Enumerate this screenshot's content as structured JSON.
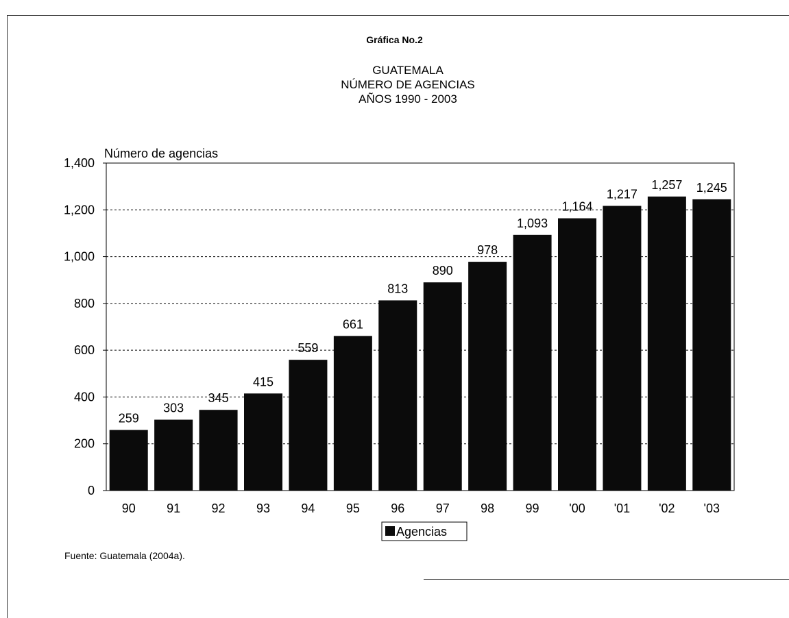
{
  "figure_label": "Gráfica No.2",
  "title_lines": [
    "GUATEMALA",
    "NÚMERO DE AGENCIAS",
    "AÑOS 1990 - 2003"
  ],
  "source": "Fuente: Guatemala (2004a).",
  "colors": {
    "bar": "#0b0b0b",
    "grid": "#000000",
    "background": "#ffffff"
  },
  "chart_data": {
    "type": "bar",
    "title": "GUATEMALA NÚMERO DE AGENCIAS AÑOS 1990 - 2003",
    "ylabel": "Número de agencias",
    "xlabel": "",
    "categories": [
      "90",
      "91",
      "92",
      "93",
      "94",
      "95",
      "96",
      "97",
      "98",
      "99",
      "'00",
      "'01",
      "'02",
      "'03"
    ],
    "series": [
      {
        "name": "Agencias",
        "values": [
          259,
          303,
          345,
          415,
          559,
          661,
          813,
          890,
          978,
          1093,
          1164,
          1217,
          1257,
          1245
        ]
      }
    ],
    "data_labels": [
      "259",
      "303",
      "345",
      "415",
      "559",
      "661",
      "813",
      "890",
      "978",
      "1,093",
      "1,164",
      "1,217",
      "1,257",
      "1,245"
    ],
    "ylim": [
      0,
      1400
    ],
    "yticks": [
      0,
      200,
      400,
      600,
      800,
      1000,
      1200,
      1400
    ],
    "ytick_labels": [
      "0",
      "200",
      "400",
      "600",
      "800",
      "1,000",
      "1,200",
      "1,400"
    ],
    "grid": "dotted horizontal",
    "legend": "bottom-center"
  }
}
